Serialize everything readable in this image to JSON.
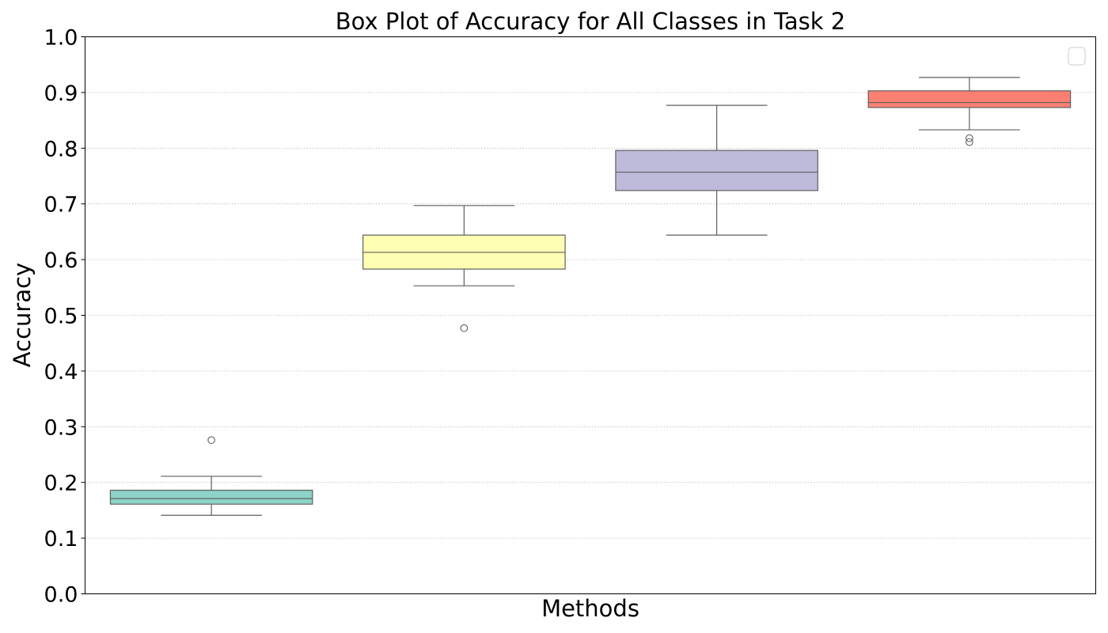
{
  "chart_data": {
    "type": "box",
    "title": "Box Plot of Accuracy for All Classes in Task 2",
    "xlabel": "Methods",
    "ylabel": "Accuracy",
    "ylim": [
      0.0,
      1.0
    ],
    "yticks": [
      "0.0",
      "0.1",
      "0.2",
      "0.3",
      "0.4",
      "0.5",
      "0.6",
      "0.7",
      "0.8",
      "0.9",
      "1.0"
    ],
    "grid": "horizontal dotted",
    "legend": {
      "placement": "top-right",
      "entries": []
    },
    "boxes": [
      {
        "color": "#8dd3c7",
        "whisker_low": 0.141,
        "q1": 0.161,
        "median": 0.171,
        "q3": 0.186,
        "whisker_high": 0.211,
        "outliers": [
          0.276
        ]
      },
      {
        "color": "#ffffb3",
        "whisker_low": 0.553,
        "q1": 0.583,
        "median": 0.613,
        "q3": 0.644,
        "whisker_high": 0.697,
        "outliers": [
          0.477
        ]
      },
      {
        "color": "#bebada",
        "whisker_low": 0.644,
        "q1": 0.724,
        "median": 0.757,
        "q3": 0.796,
        "whisker_high": 0.877,
        "outliers": []
      },
      {
        "color": "#fb8072",
        "whisker_low": 0.833,
        "q1": 0.873,
        "median": 0.882,
        "q3": 0.903,
        "whisker_high": 0.927,
        "outliers": [
          0.811,
          0.818
        ]
      }
    ]
  }
}
